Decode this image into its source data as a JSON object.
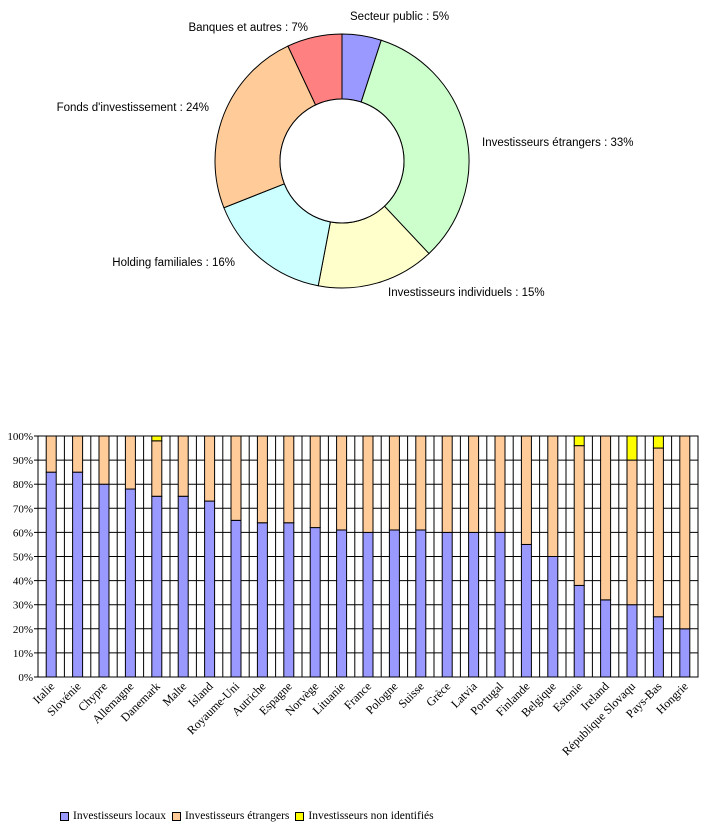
{
  "chart_data": [
    {
      "type": "pie",
      "donut": true,
      "slices": [
        {
          "label": "Secteur public : 5%",
          "value": 5,
          "color": "#9999ff"
        },
        {
          "label": "Investisseurs étrangers : 33%",
          "value": 33,
          "color": "#ccffcc"
        },
        {
          "label": "Investisseurs individuels : 15%",
          "value": 15,
          "color": "#ffffcc"
        },
        {
          "label": "Holding familiales : 16%",
          "value": 16,
          "color": "#ccffff"
        },
        {
          "label": "Fonds d'investissement : 24%",
          "value": 24,
          "color": "#ffcc99"
        },
        {
          "label": "Banques et autres : 7%",
          "value": 7,
          "color": "#ff8080"
        }
      ]
    },
    {
      "type": "bar",
      "stacked": true,
      "percent": true,
      "ylim": [
        0,
        100
      ],
      "yticks": [
        "0%",
        "10%",
        "20%",
        "30%",
        "40%",
        "50%",
        "60%",
        "70%",
        "80%",
        "90%",
        "100%"
      ],
      "grid": true,
      "legend": "bottom-left",
      "categories": [
        "Italie",
        "Slovénie",
        "Chypre",
        "Allemagne",
        "Danemark",
        "Malte",
        "Island",
        "Royaume-Uni",
        "Autriche",
        "Espagne",
        "Norvège",
        "Lituanie",
        "France",
        "Pologne",
        "Suisse",
        "Grèce",
        "Latvia",
        "Portugal",
        "Finlande",
        "Belgique",
        "Estonie",
        "Ireland",
        "République Slovaqu",
        "Pays-Bas",
        "Hongrie"
      ],
      "series": [
        {
          "name": "Investisseurs locaux",
          "color": "#9999ff",
          "values": [
            85,
            85,
            80,
            78,
            75,
            75,
            73,
            65,
            64,
            64,
            62,
            61,
            60,
            61,
            61,
            60,
            60,
            60,
            55,
            50,
            38,
            32,
            30,
            25,
            20
          ]
        },
        {
          "name": "Investisseurs étrangers",
          "color": "#ffcc99",
          "values": [
            15,
            15,
            20,
            22,
            23,
            25,
            27,
            35,
            36,
            36,
            38,
            39,
            40,
            39,
            39,
            40,
            40,
            40,
            45,
            50,
            58,
            68,
            60,
            70,
            80
          ]
        },
        {
          "name": "Investisseurs non identifiés",
          "color": "#ffff00",
          "values": [
            0,
            0,
            0,
            0,
            2,
            0,
            0,
            0,
            0,
            0,
            0,
            0,
            0,
            0,
            0,
            0,
            0,
            0,
            0,
            0,
            4,
            0,
            10,
            5,
            0
          ]
        }
      ]
    }
  ]
}
